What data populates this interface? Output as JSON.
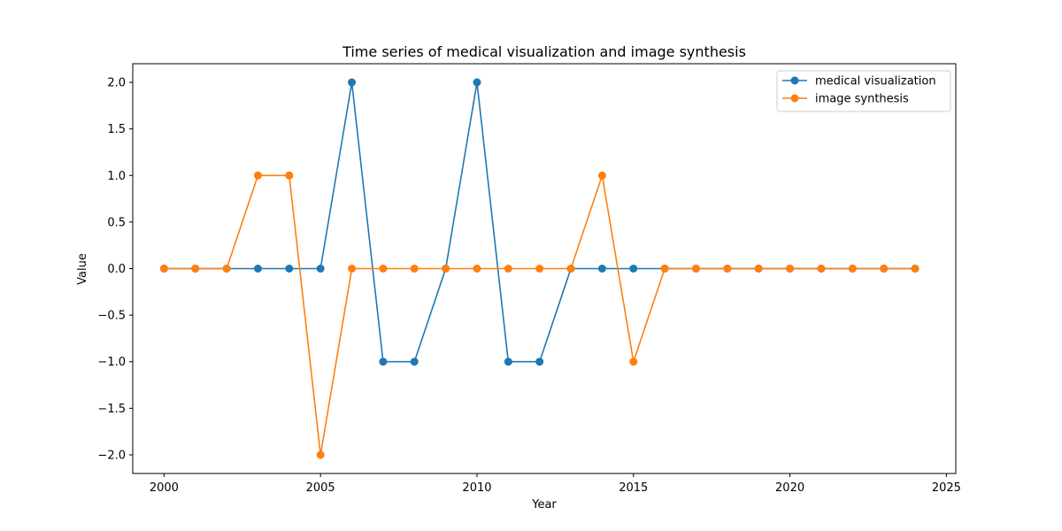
{
  "chart_data": {
    "type": "line",
    "title": "Time series of medical visualization and image synthesis",
    "xlabel": "Year",
    "ylabel": "Value",
    "xlim": [
      1999,
      2025.3
    ],
    "ylim": [
      -2.2,
      2.2
    ],
    "xticks": [
      2000,
      2005,
      2010,
      2015,
      2020,
      2025
    ],
    "yticks": [
      -2.0,
      -1.5,
      -1.0,
      -0.5,
      0.0,
      0.5,
      1.0,
      1.5,
      2.0
    ],
    "grid": false,
    "legend_position": "top-right",
    "x": [
      2000,
      2001,
      2002,
      2003,
      2004,
      2005,
      2006,
      2007,
      2008,
      2009,
      2010,
      2011,
      2012,
      2013,
      2014,
      2015,
      2016,
      2017,
      2018,
      2019,
      2020,
      2021,
      2022,
      2023,
      2024
    ],
    "series": [
      {
        "name": "medical visualization",
        "color": "#1f77b4",
        "values": [
          0,
          0,
          0,
          0,
          0,
          0,
          2,
          -1,
          -1,
          0,
          2,
          -1,
          -1,
          0,
          0,
          0,
          0,
          0,
          0,
          0,
          0,
          0,
          0,
          0,
          0
        ]
      },
      {
        "name": "image synthesis",
        "color": "#ff7f0e",
        "values": [
          0,
          0,
          0,
          1,
          1,
          -2,
          0,
          0,
          0,
          0,
          0,
          0,
          0,
          0,
          1,
          -1,
          0,
          0,
          0,
          0,
          0,
          0,
          0,
          0,
          0
        ]
      }
    ]
  }
}
